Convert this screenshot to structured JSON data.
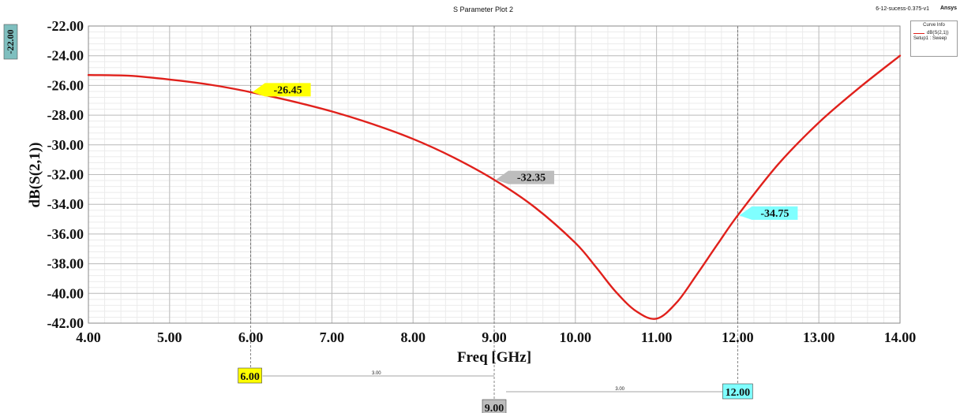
{
  "header": {
    "title": "S Parameter Plot 2",
    "design_name": "6-12-sucess-0.375-v1",
    "brand": "Ansys"
  },
  "legend": {
    "title": "Curve Info",
    "entry": "dB(S(2,1))",
    "sub": "Setup1 : Sweep"
  },
  "colors": {
    "curve": "#e0201b",
    "marker_1": "#ffff00",
    "marker_2": "#bdbdbd",
    "marker_3": "#7fffff",
    "y_max_badge": "#7fbfbf"
  },
  "chart_data": {
    "type": "line",
    "title": "S Parameter Plot 2",
    "xlabel": "Freq [GHz]",
    "ylabel": "dB(S(2,1))",
    "xlim": [
      4.0,
      14.0
    ],
    "ylim": [
      -42.0,
      -22.0
    ],
    "x_ticks": [
      "4.00",
      "5.00",
      "6.00",
      "7.00",
      "8.00",
      "9.00",
      "10.00",
      "11.00",
      "12.00",
      "13.00",
      "14.00"
    ],
    "y_ticks": [
      "-22.00",
      "-24.00",
      "-26.00",
      "-28.00",
      "-30.00",
      "-32.00",
      "-34.00",
      "-36.00",
      "-38.00",
      "-40.00",
      "-42.00"
    ],
    "grid": true,
    "legend_position": "top-right",
    "series": [
      {
        "name": "dB(S(2,1))",
        "x": [
          4.0,
          4.5,
          5.0,
          5.5,
          6.0,
          6.5,
          7.0,
          7.5,
          8.0,
          8.5,
          9.0,
          9.5,
          10.0,
          10.25,
          10.5,
          10.75,
          11.0,
          11.25,
          11.5,
          11.75,
          12.0,
          12.5,
          13.0,
          13.5,
          14.0
        ],
        "y": [
          -25.3,
          -25.35,
          -25.6,
          -25.95,
          -26.45,
          -27.05,
          -27.75,
          -28.6,
          -29.6,
          -30.85,
          -32.35,
          -34.2,
          -36.6,
          -38.2,
          -39.9,
          -41.2,
          -41.7,
          -40.6,
          -38.7,
          -36.7,
          -34.75,
          -31.3,
          -28.5,
          -26.15,
          -24.0
        ]
      }
    ],
    "markers": [
      {
        "x_label": "6.00",
        "y_label": "-26.45",
        "x": 6.0,
        "y": -26.45
      },
      {
        "x_label": "9.00",
        "y_label": "-32.35",
        "x": 9.0,
        "y": -32.35
      },
      {
        "x_label": "12.00",
        "y_label": "-34.75",
        "x": 12.0,
        "y": -34.75
      }
    ],
    "delta_labels": [
      "3.00",
      "3.00"
    ],
    "y_max_badge": "-22.00"
  }
}
